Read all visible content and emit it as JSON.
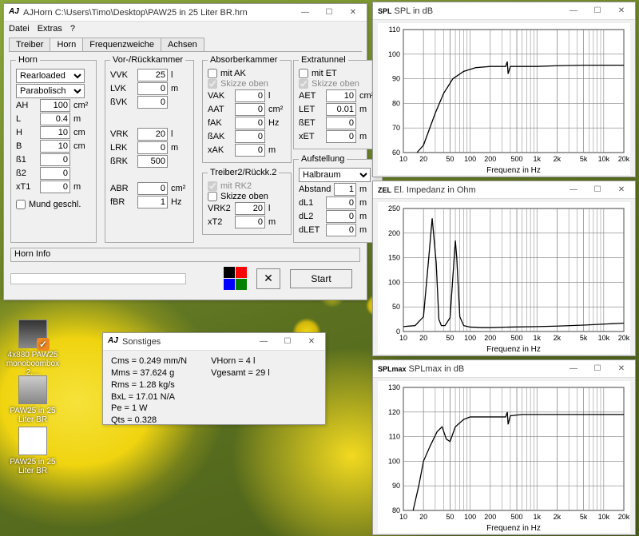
{
  "main": {
    "title": "AJHorn  C:\\Users\\Timo\\Desktop\\PAW25 in 25 Liter BR.hrn",
    "menus": [
      "Datei",
      "Extras",
      "?"
    ],
    "tabs": [
      "Treiber",
      "Horn",
      "Frequenzweiche",
      "Achsen"
    ],
    "active_tab": 1,
    "horn": {
      "legend": "Horn",
      "type_sel": "Rearloaded",
      "shape_sel": "Parabolisch",
      "AH": "100",
      "AH_u": "cm²",
      "L": "0.4",
      "L_u": "m",
      "H": "10",
      "H_u": "cm",
      "B": "10",
      "B_u": "cm",
      "B1": "0",
      "B2": "0",
      "xT1": "0",
      "xT1_u": "m",
      "mund_cb": false,
      "mund_lbl": "Mund geschl."
    },
    "vorruck": {
      "legend": "Vor-/Rückkammer",
      "VVK": "25",
      "VVK_u": "l",
      "LVK": "0",
      "LVK_u": "m",
      "BVK": "0",
      "VRK": "20",
      "VRK_u": "l",
      "LRK": "0",
      "LRK_u": "m",
      "BRK": "500",
      "ABR": "0",
      "ABR_u": "cm²",
      "fBR": "1",
      "fBR_u": "Hz"
    },
    "absorber": {
      "legend": "Absorberkammer",
      "mitAK": false,
      "mitAK_lbl": "mit AK",
      "skizze": true,
      "skizze_lbl": "Skizze oben",
      "VAK": "0",
      "VAK_u": "l",
      "AAT": "0",
      "AAT_u": "cm²",
      "fAK": "0",
      "fAK_u": "Hz",
      "BAK": "0",
      "xAK": "0",
      "xAK_u": "m"
    },
    "treiber2": {
      "legend": "Treiber2/Rückk.2",
      "mitRK2": true,
      "mitRK2_lbl": "mit RK2",
      "skizze": false,
      "skizze_lbl": "Skizze oben",
      "VRK2": "20",
      "VRK2_u": "l",
      "xT2": "0",
      "xT2_u": "m"
    },
    "extratunnel": {
      "legend": "Extratunnel",
      "mitET": false,
      "mitET_lbl": "mit ET",
      "skizze": true,
      "skizze_lbl": "Skizze oben",
      "AET": "10",
      "AET_u": "cm²",
      "LET": "0.01",
      "LET_u": "m",
      "BET": "0",
      "xET": "0",
      "xET_u": "m"
    },
    "aufstellung": {
      "legend": "Aufstellung",
      "sel": "Halbraum",
      "Abstand": "1",
      "Abstand_u": "m",
      "dL1": "0",
      "dL1_u": "m",
      "dL2": "0",
      "dL2_u": "m",
      "dLET": "0",
      "dLET_u": "m"
    },
    "info": "Horn Info",
    "squares": [
      "#000000",
      "#ff0000",
      "#0000ff",
      "#008000"
    ],
    "start": "Start"
  },
  "sonstiges": {
    "title": "Sonstiges",
    "left": [
      "Cms = 0.249 mm/N",
      "Mms = 37.624 g",
      "Rms = 1.28 kg/s",
      "BxL = 17.01 N/A",
      "Pe = 1 W",
      "Qts = 0.328"
    ],
    "right": [
      "VHorn = 4 l",
      "Vgesamt = 29 l"
    ]
  },
  "chart_common": {
    "xlabel": "Frequenz in Hz",
    "xticks": [
      "10",
      "20",
      "50",
      "100",
      "200",
      "500",
      "1k",
      "2k",
      "5k",
      "10k",
      "20k"
    ],
    "grid_color": "#808080",
    "line_color": "#000000",
    "bg": "#ffffff"
  },
  "chart1": {
    "prefix": "SPL",
    "title": "SPL in dB",
    "ymin": 60,
    "ymax": 110,
    "ystep": 10,
    "points": [
      [
        16,
        60
      ],
      [
        20,
        63
      ],
      [
        30,
        76
      ],
      [
        40,
        84
      ],
      [
        55,
        90
      ],
      [
        80,
        93
      ],
      [
        120,
        94.5
      ],
      [
        200,
        95
      ],
      [
        340,
        95
      ],
      [
        360,
        97
      ],
      [
        370,
        92
      ],
      [
        400,
        95
      ],
      [
        600,
        95
      ],
      [
        1000,
        95
      ],
      [
        2000,
        95.3
      ],
      [
        5000,
        95.5
      ],
      [
        10000,
        95.5
      ],
      [
        20000,
        95.5
      ]
    ]
  },
  "chart2": {
    "prefix": "ZEL",
    "title": "El. Impedanz in Ohm",
    "ymin": 0,
    "ymax": 250,
    "ystep": 50,
    "points": [
      [
        10,
        10
      ],
      [
        15,
        12
      ],
      [
        20,
        30
      ],
      [
        24,
        150
      ],
      [
        27,
        230
      ],
      [
        31,
        140
      ],
      [
        34,
        25
      ],
      [
        37,
        12
      ],
      [
        42,
        12
      ],
      [
        50,
        28
      ],
      [
        57,
        140
      ],
      [
        60,
        185
      ],
      [
        63,
        150
      ],
      [
        70,
        30
      ],
      [
        80,
        12
      ],
      [
        100,
        9
      ],
      [
        150,
        8
      ],
      [
        200,
        8
      ],
      [
        400,
        9
      ],
      [
        1000,
        10
      ],
      [
        2000,
        11
      ],
      [
        5000,
        13
      ],
      [
        10000,
        15
      ],
      [
        20000,
        17
      ]
    ]
  },
  "chart3": {
    "prefix": "SPLmax",
    "title": "SPLmax in dB",
    "ymin": 80,
    "ymax": 130,
    "ystep": 10,
    "points": [
      [
        14,
        80
      ],
      [
        17,
        90
      ],
      [
        20,
        100
      ],
      [
        25,
        106
      ],
      [
        32,
        112
      ],
      [
        38,
        114
      ],
      [
        44,
        109
      ],
      [
        50,
        108
      ],
      [
        60,
        114
      ],
      [
        80,
        117
      ],
      [
        100,
        118
      ],
      [
        200,
        118
      ],
      [
        340,
        118
      ],
      [
        360,
        120
      ],
      [
        370,
        115
      ],
      [
        400,
        118.5
      ],
      [
        600,
        119
      ],
      [
        1000,
        119
      ],
      [
        2000,
        119
      ],
      [
        5000,
        119
      ],
      [
        10000,
        119
      ],
      [
        20000,
        119
      ]
    ]
  },
  "icons": {
    "i1": "4x880 PAW25 monoboombox 2....",
    "i2": "PAW25 in 25 Liter BR",
    "i3": "PAW25 in 25 Liter BR"
  }
}
